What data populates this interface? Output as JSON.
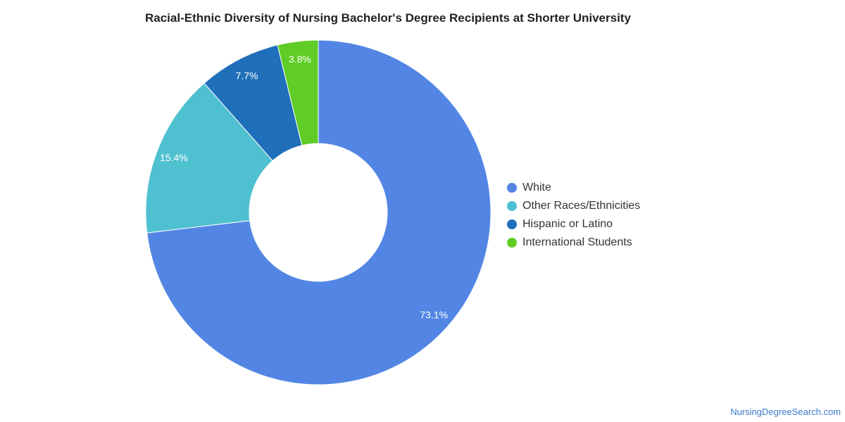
{
  "chart_data": {
    "type": "pie",
    "style": "donut",
    "title": "Racial-Ethnic Diversity of Nursing Bachelor's Degree Recipients at Shorter University",
    "categories": [
      "White",
      "Other Races/Ethnicities",
      "Hispanic or Latino",
      "International Students"
    ],
    "values": [
      73.1,
      15.4,
      7.7,
      3.8
    ],
    "value_labels": [
      "73.1%",
      "15.4%",
      "7.7%",
      "3.8%"
    ],
    "colors": [
      "#5386e4",
      "#4fc0cf",
      "#1f6fba",
      "#5fcd26"
    ],
    "legend_position": "right"
  },
  "footer": {
    "source": "NursingDegreeSearch.com"
  }
}
